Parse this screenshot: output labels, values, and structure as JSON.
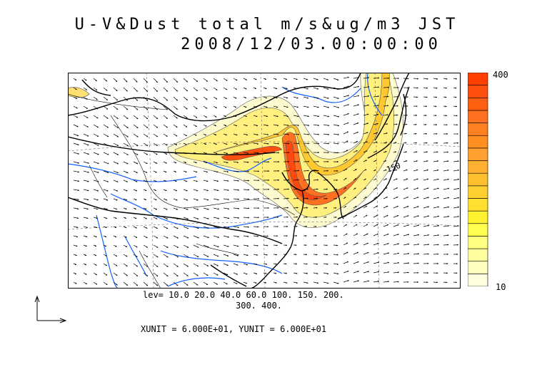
{
  "header": {
    "title_line1": "U-V&Dust total m/s&ug/m3 JST",
    "title_line2": "2008/12/03.00:00:00"
  },
  "colorbar": {
    "max_label": "400",
    "min_label": "10",
    "colors": [
      "#ffffe0",
      "#ffffc0",
      "#ffffa0",
      "#ffff80",
      "#ffff50",
      "#fff030",
      "#ffe030",
      "#ffd030",
      "#ffc030",
      "#ffb030",
      "#ffa030",
      "#ff9020",
      "#ff8020",
      "#ff7020",
      "#ff6010",
      "#ff5010",
      "#ff4000"
    ]
  },
  "contour_label": "150",
  "legend": {
    "levels_line1": "lev= 10.0 20.0 40.0 60.0 100. 150. 200.",
    "levels_line2": "300. 400.",
    "units": "XUNIT = 6.000E+01, YUNIT = 6.000E+01"
  },
  "map_style": {
    "coast_color": "#000000",
    "river_color": "#1060ff",
    "dust_low": "#fff8b0",
    "dust_mid": "#ffdd40",
    "dust_high": "#ff4010"
  }
}
